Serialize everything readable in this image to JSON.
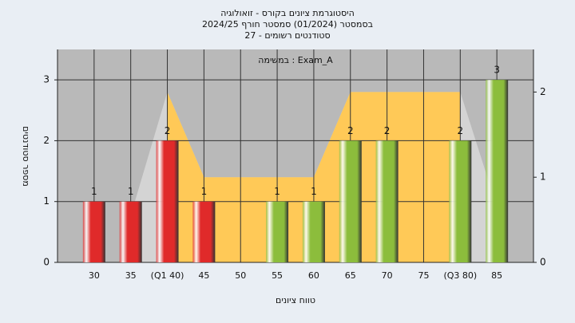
{
  "chart_data": {
    "type": "bar",
    "title": "היסטוגרמת ציונים בקורס - זואולוגיה",
    "subtitle": "בסמסטר  (01/2024)  סמסטר חורף 2024/25",
    "subtitle2": "סטודנטים רשומים - 27",
    "annotation": "במשימה : Exam_A",
    "x_label": "טווח ציונים",
    "y_label": "מספר סטודנטים",
    "categories": [
      "30",
      "35",
      "(Q1 40)",
      "45",
      "50",
      "55",
      "60",
      "65",
      "70",
      "75",
      "(Q3 80)",
      "85"
    ],
    "values": [
      1,
      1,
      2,
      1,
      0,
      1,
      1,
      2,
      2,
      0,
      2,
      3
    ],
    "colors": [
      "#e02a2a",
      "#e02a2a",
      "#e02a2a",
      "#e02a2a",
      "#e02a2a",
      "#8cbd3c",
      "#8cbd3c",
      "#8cbd3c",
      "#8cbd3c",
      "#8cbd3c",
      "#8cbd3c",
      "#8cbd3c"
    ],
    "areas": [
      {
        "axis": "y2",
        "color": "#d4d4d4",
        "values": [
          null,
          0.55,
          2,
          1,
          1,
          1,
          1,
          2,
          2,
          2,
          2,
          0.65
        ]
      },
      {
        "axis": "y2",
        "color": "#ffc957",
        "values": [
          null,
          null,
          2,
          1,
          1,
          1,
          1,
          2,
          2,
          2,
          2,
          null
        ]
      }
    ],
    "ylim": [
      0,
      3.5
    ],
    "yticks": [
      0,
      1,
      2,
      3
    ],
    "y2lim": [
      0,
      2.5
    ],
    "y2ticks": [
      0,
      1,
      2
    ],
    "grid": true
  }
}
